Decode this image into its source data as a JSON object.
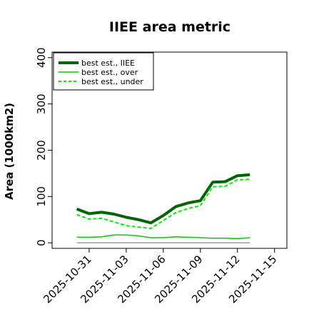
{
  "chart_data": {
    "type": "line",
    "title": "IIEE area metric",
    "xlabel": "",
    "ylabel": "Area (1000km2)",
    "ylim": [
      -12,
      412
    ],
    "yticks": [
      0,
      100,
      200,
      300,
      400
    ],
    "ytick_labels": [
      "0",
      "100",
      "200",
      "300",
      "400"
    ],
    "x_range": [
      "2025-10-28",
      "2025-11-16"
    ],
    "xticks": [
      "2025-10-31",
      "2025-11-03",
      "2025-11-06",
      "2025-11-09",
      "2025-11-12",
      "2025-11-15"
    ],
    "xtick_labels": [
      "2025-10-31",
      "2025-11-03",
      "2025-11-06",
      "2025-11-09",
      "2025-11-12",
      "2025-11-15"
    ],
    "legend_position": "top-left",
    "grid": false,
    "x": [
      "2025-10-30",
      "2025-10-31",
      "2025-11-01",
      "2025-11-02",
      "2025-11-03",
      "2025-11-04",
      "2025-11-05",
      "2025-11-06",
      "2025-11-07",
      "2025-11-08",
      "2025-11-09",
      "2025-11-10",
      "2025-11-11",
      "2025-11-12",
      "2025-11-13"
    ],
    "series": [
      {
        "name": "best est., IIEE",
        "color": "#006400",
        "style": "solid",
        "width": "thick",
        "values": [
          73,
          63,
          66,
          62,
          55,
          50,
          43,
          59,
          78,
          86,
          91,
          131,
          132,
          145,
          147
        ]
      },
      {
        "name": "best est., over",
        "color": "#00cc00",
        "style": "solid",
        "width": "thin",
        "values": [
          12,
          12,
          13,
          17,
          17,
          15,
          11,
          11,
          13,
          12,
          11,
          10,
          10,
          9,
          11
        ]
      },
      {
        "name": "best est., under",
        "color": "#00ee00",
        "style": "dashed",
        "width": "medium",
        "values": [
          61,
          51,
          53,
          45,
          37,
          34,
          31,
          48,
          65,
          74,
          80,
          121,
          122,
          136,
          137
        ]
      }
    ],
    "reference_line": {
      "y": 0,
      "color": "#888888",
      "x_from": "2025-10-30",
      "x_to": "2025-11-13"
    }
  }
}
